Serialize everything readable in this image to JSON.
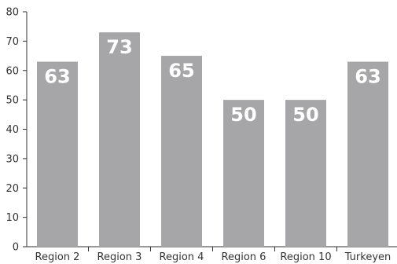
{
  "chart_data": {
    "type": "bar",
    "title": "",
    "xlabel": "",
    "ylabel": "",
    "categories": [
      "Region 2",
      "Region 3",
      "Region 4",
      "Region 6",
      "Region 10",
      "Turkeyen"
    ],
    "values": [
      63,
      73,
      65,
      50,
      50,
      63
    ],
    "ylim": [
      0,
      80
    ],
    "yticks": [
      0,
      10,
      20,
      30,
      40,
      50,
      60,
      70,
      80
    ],
    "ytick_labels": [
      "0",
      "10",
      "20",
      "30",
      "40",
      "50",
      "60",
      "70",
      "80"
    ],
    "data_labels": [
      "63",
      "73",
      "65",
      "50",
      "50",
      "63"
    ],
    "data_label_position": "inside-top",
    "grid": false,
    "legend": "none",
    "colors": {
      "bar": "#a6a6a8",
      "axis": "#333333",
      "label_text": "#333333",
      "data_label_text": "#ffffff",
      "background": "#ffffff"
    }
  }
}
